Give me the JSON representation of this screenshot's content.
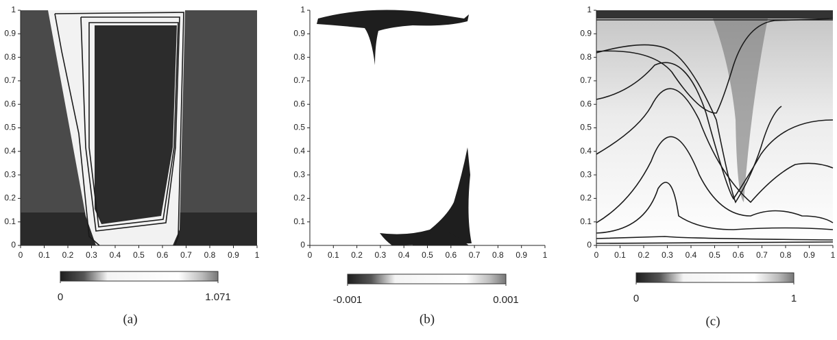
{
  "chart_data": [
    {
      "type": "heatmap",
      "caption": "(a)",
      "xlim": [
        0,
        1
      ],
      "ylim": [
        0,
        1
      ],
      "xticks": [
        0,
        0.1,
        0.2,
        0.3,
        0.4,
        0.5,
        0.6,
        0.7,
        0.8,
        0.9,
        1
      ],
      "yticks": [
        0,
        0.1,
        0.2,
        0.3,
        0.4,
        0.5,
        0.6,
        0.7,
        0.8,
        0.9,
        1
      ],
      "clim": [
        0,
        1.071
      ],
      "cticks": [
        0,
        1.071
      ]
    },
    {
      "type": "heatmap",
      "caption": "(b)",
      "xlim": [
        0,
        1
      ],
      "ylim": [
        0,
        1
      ],
      "xticks": [
        0,
        0.1,
        0.2,
        0.3,
        0.4,
        0.5,
        0.6,
        0.7,
        0.8,
        0.9,
        1
      ],
      "yticks": [
        0,
        0.1,
        0.2,
        0.3,
        0.4,
        0.5,
        0.6,
        0.7,
        0.8,
        0.9,
        1
      ],
      "clim": [
        -0.001,
        0.001
      ],
      "cticks": [
        -0.001,
        0.001
      ]
    },
    {
      "type": "heatmap",
      "caption": "(c)",
      "xlim": [
        0,
        1
      ],
      "ylim": [
        0,
        1
      ],
      "xticks": [
        0,
        0.1,
        0.2,
        0.3,
        0.4,
        0.5,
        0.6,
        0.7,
        0.8,
        0.9,
        1
      ],
      "yticks": [
        0,
        0.1,
        0.2,
        0.3,
        0.4,
        0.5,
        0.6,
        0.7,
        0.8,
        0.9,
        1
      ],
      "clim": [
        0,
        1
      ],
      "cticks": [
        0,
        1
      ]
    }
  ]
}
